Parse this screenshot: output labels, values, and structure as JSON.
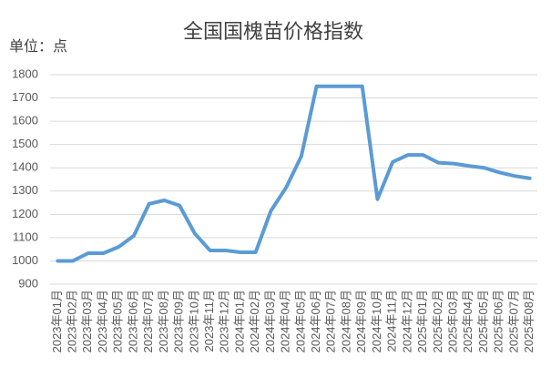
{
  "chart_data": {
    "type": "line",
    "title": "全国国槐苗价格指数",
    "y_label": "单位：点",
    "categories": [
      "2023年01月",
      "2023年02月",
      "2023年03月",
      "2023年04月",
      "2023年05月",
      "2023年06月",
      "2023年07月",
      "2023年08月",
      "2023年09月",
      "2023年10月",
      "2023年11月",
      "2023年12月",
      "2024年01月",
      "2024年02月",
      "2024年03月",
      "2024年04月",
      "2024年05月",
      "2024年06月",
      "2024年07月",
      "2024年08月",
      "2024年09月",
      "2024年10月",
      "2024年11月",
      "2024年12月",
      "2025年01月",
      "2025年02月",
      "2025年03月",
      "2025年04月",
      "2025年05月",
      "2025年06月",
      "2025年07月",
      "2025年08月"
    ],
    "values": [
      1000,
      1000,
      1033,
      1033,
      1060,
      1108,
      1245,
      1260,
      1238,
      1118,
      1045,
      1045,
      1037,
      1037,
      1215,
      1315,
      1450,
      1750,
      1750,
      1750,
      1750,
      1265,
      1425,
      1455,
      1455,
      1422,
      1418,
      1408,
      1400,
      1380,
      1365,
      1355
    ],
    "color": "#5b9bd5",
    "ylim": [
      900,
      1800
    ],
    "yticks": [
      900,
      1000,
      1100,
      1200,
      1300,
      1400,
      1500,
      1600,
      1700,
      1800
    ],
    "grid": true
  }
}
